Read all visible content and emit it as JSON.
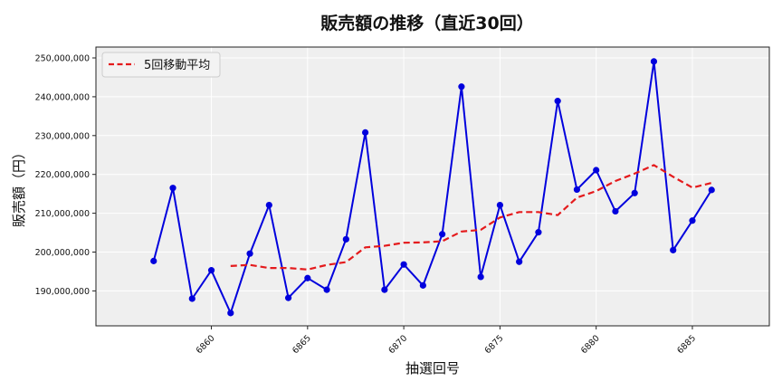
{
  "chart_data": {
    "type": "line",
    "title": "販売額の推移（直近30回）",
    "xlabel": "抽選回号",
    "ylabel": "販売額（円）",
    "x": [
      6857,
      6858,
      6859,
      6860,
      6861,
      6862,
      6863,
      6864,
      6865,
      6866,
      6867,
      6868,
      6869,
      6870,
      6871,
      6872,
      6873,
      6874,
      6875,
      6876,
      6877,
      6878,
      6879,
      6880,
      6881,
      6882,
      6883,
      6884,
      6885,
      6886
    ],
    "x_ticks": [
      6860,
      6865,
      6870,
      6875,
      6880,
      6885
    ],
    "y_ticks": [
      190000000,
      200000000,
      210000000,
      220000000,
      230000000,
      240000000,
      250000000
    ],
    "y_tick_labels": [
      "190,000,000",
      "200,000,000",
      "210,000,000",
      "220,000,000",
      "230,000,000",
      "240,000,000",
      "250,000,000"
    ],
    "xlim": [
      6854.0,
      6889.0
    ],
    "ylim": [
      181000000,
      252800000
    ],
    "grid": true,
    "legend_position": "upper left",
    "series": [
      {
        "name": "販売額",
        "color": "#0000dd",
        "style": "solid",
        "marker": "circle",
        "in_legend": false,
        "values": [
          197700000,
          216500000,
          188000000,
          195300000,
          184300000,
          199600000,
          212100000,
          188200000,
          193300000,
          190300000,
          203300000,
          230800000,
          190300000,
          196800000,
          191400000,
          204600000,
          242600000,
          193600000,
          212100000,
          197500000,
          205100000,
          238900000,
          216100000,
          221100000,
          210500000,
          215200000,
          249100000,
          200500000,
          208100000,
          216000000
        ]
      },
      {
        "name": "5回移動平均",
        "color": "#e41a1c",
        "style": "dashed",
        "marker": "none",
        "in_legend": true,
        "start_index": 4,
        "values": [
          null,
          null,
          null,
          null,
          196400000,
          196700000,
          195900000,
          195900000,
          195500000,
          196700000,
          197400000,
          201200000,
          201600000,
          202400000,
          202500000,
          202800000,
          205300000,
          205700000,
          208900000,
          210300000,
          210300000,
          209500000,
          214000000,
          215700000,
          218300000,
          220200000,
          222400000,
          219400000,
          216600000,
          217800000
        ]
      }
    ]
  },
  "legend": {
    "items": [
      {
        "label": "5回移動平均"
      }
    ]
  }
}
